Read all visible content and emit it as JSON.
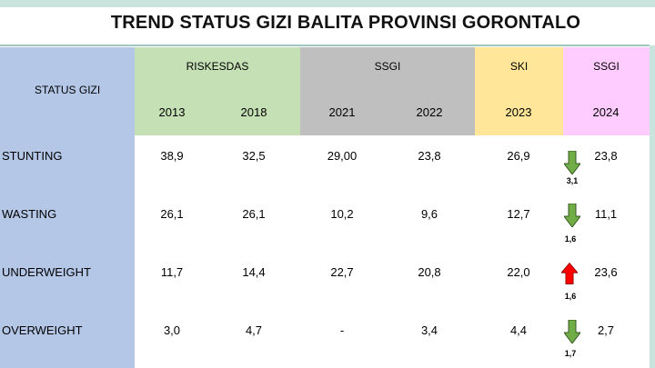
{
  "title": "TREND STATUS GIZI BALITA PROVINSI GORONTALO",
  "header": {
    "status_label": "STATUS GIZI",
    "groups": [
      "RISKESDAS",
      "SSGI",
      "SKI",
      "SSGI"
    ],
    "years": [
      "2013",
      "2018",
      "2021",
      "2022",
      "2023",
      "2024"
    ]
  },
  "rows": [
    {
      "label": "STUNTING",
      "values": [
        "38,9",
        "32,5",
        "29,00",
        "23,8",
        "26,9",
        "23,8"
      ],
      "trend": "down",
      "change": "3,1"
    },
    {
      "label": "WASTING",
      "values": [
        "26,1",
        "26,1",
        "10,2",
        "9,6",
        "12,7",
        "11,1"
      ],
      "trend": "down",
      "change": "1,6"
    },
    {
      "label": "UNDERWEIGHT",
      "values": [
        "11,7",
        "14,4",
        "22,7",
        "20,8",
        "22,0",
        "23,6"
      ],
      "trend": "up",
      "change": "1,6"
    },
    {
      "label": "OVERWEIGHT",
      "values": [
        "3,0",
        "4,7",
        "-",
        "3,4",
        "4,4",
        "2,7"
      ],
      "trend": "down",
      "change": "1,7"
    }
  ],
  "colors": {
    "status_col": "#b4c7e7",
    "riskesdas": "#c5e0b4",
    "ssgi": "#bfbfbf",
    "ski": "#ffe699",
    "ssgi_2024": "#ffccff",
    "arrow_down": "#70ad47",
    "arrow_up": "#ff0000"
  },
  "icons": {
    "down": "arrow-down-icon",
    "up": "arrow-up-icon"
  }
}
